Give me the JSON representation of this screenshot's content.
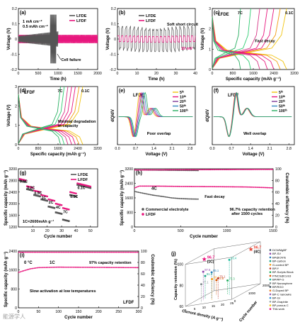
{
  "footer": {
    "watermark": "能源学人"
  },
  "chart_data": [
    {
      "id": "a",
      "type": "line",
      "panel_label": "(a)",
      "xlabel": "Time (h)",
      "ylabel": "Voltage (V)",
      "xlim": [
        0,
        2000
      ],
      "ylim": [
        -0.2,
        0.2
      ],
      "xticks": [
        0,
        500,
        1000,
        1500,
        2000
      ],
      "yticks": [
        -0.2,
        -0.1,
        0.0,
        0.1,
        0.2
      ],
      "texts": [
        "1 mA cm⁻²",
        "0.5 mAh cm⁻²"
      ],
      "annotation": "Cell failure",
      "series": [
        {
          "name": "LFDE",
          "color": "#555555",
          "envelope": [
            [
              0,
              0.02
            ],
            [
              200,
              0.03
            ],
            [
              500,
              0.035
            ],
            [
              700,
              0.045
            ],
            [
              780,
              0.06
            ],
            [
              820,
              -0.17
            ],
            [
              900,
              0.15
            ],
            [
              960,
              -0.18
            ],
            [
              1000,
              0.05
            ]
          ]
        },
        {
          "name": "LFDF",
          "color": "#e8177e",
          "envelope": [
            [
              0,
              0.025
            ],
            [
              1000,
              0.028
            ],
            [
              2000,
              0.03
            ]
          ]
        }
      ]
    },
    {
      "id": "b",
      "type": "line",
      "panel_label": "(b)",
      "xlabel": "Time (h)",
      "ylabel": "Voltage (V)",
      "xlim": [
        0,
        40
      ],
      "ylim": [
        -0.2,
        0.2
      ],
      "xticks": [
        0,
        10,
        20,
        30,
        40
      ],
      "yticks": [
        -0.2,
        -0.1,
        0.0,
        0.1,
        0.2
      ],
      "annotations": [
        "Soft short circuit",
        "19 mV"
      ],
      "series": [
        {
          "name": "LFDE",
          "color": "#555555",
          "amplitude": 0.07
        },
        {
          "name": "LFDF",
          "color": "#e8177e",
          "amplitude": 0.019
        }
      ]
    },
    {
      "id": "c",
      "type": "line",
      "panel_label": "(c)",
      "title": "LFDE",
      "xlabel": "Specific capacity (mAh g⁻¹)",
      "ylabel": "Voltage (V)",
      "xlim": [
        0,
        3200
      ],
      "ylim": [
        0,
        3
      ],
      "xticks": [
        0,
        800,
        1600,
        2400,
        3200
      ],
      "yticks": [
        0,
        1,
        2,
        3
      ],
      "rate_labels": [
        "7C",
        "0.1C"
      ],
      "annotation": "Fast decay",
      "series": [
        {
          "name": "0.1C",
          "color": "#f1c40f",
          "capacity": 2900
        },
        {
          "name": "0.2C",
          "color": "#f39c12",
          "capacity": 2650
        },
        {
          "name": "0.5C",
          "color": "#e8177e",
          "capacity": 2400
        },
        {
          "name": "1C",
          "color": "#e8177e",
          "capacity": 2150
        },
        {
          "name": "2C",
          "color": "#d63384",
          "capacity": 1850
        },
        {
          "name": "4C",
          "color": "#2ecc71",
          "capacity": 1500
        },
        {
          "name": "7C",
          "color": "#27ae60",
          "capacity": 1100
        }
      ]
    },
    {
      "id": "d",
      "type": "line",
      "panel_label": "(d)",
      "title": "LFDF",
      "xlabel": "Specific capacity (mAh g⁻¹)",
      "ylabel": "Voltage (V)",
      "xlim": [
        0,
        3200
      ],
      "ylim": [
        0,
        3
      ],
      "xticks": [
        0,
        800,
        1600,
        2400,
        3200
      ],
      "yticks": [
        0,
        1,
        2,
        3
      ],
      "rate_labels": [
        "7C",
        "0.1C"
      ],
      "annotation": "Minimal degradation in capacity",
      "series": [
        {
          "name": "0.1C",
          "color": "#f1c40f",
          "capacity": 2600
        },
        {
          "name": "0.2C",
          "color": "#f39c12",
          "capacity": 2450
        },
        {
          "name": "0.5C",
          "color": "#e8177e",
          "capacity": 2300
        },
        {
          "name": "1C",
          "color": "#e8177e",
          "capacity": 2150
        },
        {
          "name": "2C",
          "color": "#d63384",
          "capacity": 2000
        },
        {
          "name": "4C",
          "color": "#2ecc71",
          "capacity": 1850
        },
        {
          "name": "7C",
          "color": "#27ae60",
          "capacity": 1700
        }
      ]
    },
    {
      "id": "e",
      "type": "line",
      "panel_label": "(e)",
      "title": "LFDE",
      "xlabel": "Voltage (V)",
      "ylabel": "dQ/dV",
      "xlim": [
        0,
        3.0
      ],
      "xticks": [
        0.0,
        0.7,
        1.4,
        2.1,
        2.8
      ],
      "annotation": "Poor overlap",
      "series": [
        {
          "name": "5ᵗʰ",
          "color": "#f1c40f",
          "peak_shift": 0.0
        },
        {
          "name": "10ᵗʰ",
          "color": "#e8177e",
          "peak_shift": 0.05
        },
        {
          "name": "20ᵗʰ",
          "color": "#7d3c98",
          "peak_shift": 0.1
        },
        {
          "name": "50ᵗʰ",
          "color": "#2e86c1",
          "peak_shift": 0.16
        },
        {
          "name": "100ᵗʰ",
          "color": "#27ae60",
          "peak_shift": 0.22
        }
      ]
    },
    {
      "id": "f",
      "type": "line",
      "panel_label": "(f)",
      "title": "LFDF",
      "xlabel": "Voltage (V)",
      "ylabel": "dQ/dV",
      "xlim": [
        0,
        3.0
      ],
      "xticks": [
        0.0,
        0.7,
        1.4,
        2.1,
        2.8
      ],
      "annotation": "Well overlap",
      "series": [
        {
          "name": "5ᵗʰ",
          "color": "#f1c40f",
          "peak_shift": 0.0
        },
        {
          "name": "10ᵗʰ",
          "color": "#e8177e",
          "peak_shift": 0.01
        },
        {
          "name": "20ᵗʰ",
          "color": "#7d3c98",
          "peak_shift": 0.02
        },
        {
          "name": "50ᵗʰ",
          "color": "#2e86c1",
          "peak_shift": 0.03
        },
        {
          "name": "100ᵗʰ",
          "color": "#27ae60",
          "peak_shift": 0.04
        }
      ]
    },
    {
      "id": "g",
      "type": "scatter",
      "panel_label": "(g)",
      "xlabel": "Cycle number",
      "ylabel": "Specific capacity (mAh g⁻¹)",
      "xlim": [
        0,
        55
      ],
      "ylim": [
        1200,
        3200
      ],
      "xticks": [
        10,
        20,
        30,
        40,
        50
      ],
      "yticks": [
        1200,
        1600,
        2000,
        2400,
        2800,
        3200
      ],
      "note": "1C=2600mAh g⁻¹",
      "rate_steps": [
        {
          "label": "0.1C",
          "start": 1,
          "end": 5
        },
        {
          "label": "0.2C",
          "start": 6,
          "end": 10
        },
        {
          "label": "0.5C",
          "start": 11,
          "end": 15
        },
        {
          "label": "1C",
          "start": 16,
          "end": 20
        },
        {
          "label": "2C",
          "start": 21,
          "end": 25
        },
        {
          "label": "4C",
          "start": 26,
          "end": 30
        },
        {
          "label": "7C",
          "start": 31,
          "end": 35
        },
        {
          "label": "0.5C",
          "start": 36,
          "end": 40
        },
        {
          "label": "0.1C",
          "start": 41,
          "end": 50
        }
      ],
      "series": [
        {
          "name": "LFDE",
          "color": "#555555",
          "values": [
            2800,
            2500,
            2300,
            2150,
            1900,
            1700,
            1450,
            2300,
            2650
          ]
        },
        {
          "name": "LFDF",
          "color": "#e8177e",
          "values": [
            2850,
            2600,
            2450,
            2300,
            2150,
            2000,
            1850,
            2400,
            2700
          ]
        }
      ]
    },
    {
      "id": "h",
      "type": "line",
      "panel_label": "(h)",
      "xlabel": "Cycle number",
      "ylabel": "Specific capacity (mAh g⁻¹)",
      "y2label": "Coulombic efficiency (%)",
      "xlim": [
        0,
        1500
      ],
      "ylim": [
        0,
        3200
      ],
      "y2lim": [
        0,
        100
      ],
      "xticks": [
        0,
        500,
        1000,
        1500
      ],
      "yticks": [
        0,
        800,
        1600,
        2400,
        3200
      ],
      "y2ticks": [
        0,
        20,
        40,
        60,
        80,
        100
      ],
      "rate": "4C",
      "annotations": [
        "Fast decay",
        "96.7% capacity retention after 1500 cycles"
      ],
      "series": [
        {
          "name": "Commercial electrolyte",
          "color": "#555555",
          "points": [
            [
              5,
              1950
            ],
            [
              50,
              1900
            ],
            [
              100,
              1850
            ],
            [
              200,
              1750
            ],
            [
              300,
              1680
            ],
            [
              400,
              1600
            ],
            [
              500,
              1560
            ],
            [
              600,
              1540
            ],
            [
              700,
              1530
            ]
          ],
          "ce": [
            [
              5,
              98
            ],
            [
              700,
              97
            ]
          ]
        },
        {
          "name": "LFDF",
          "color": "#e8177e",
          "points": [
            [
              5,
              2150
            ],
            [
              50,
              2250
            ],
            [
              200,
              2250
            ],
            [
              500,
              2230
            ],
            [
              800,
              2220
            ],
            [
              1000,
              2210
            ],
            [
              1200,
              2200
            ],
            [
              1400,
              2170
            ],
            [
              1500,
              2150
            ]
          ],
          "ce": [
            [
              5,
              98
            ],
            [
              1500,
              99
            ]
          ]
        }
      ]
    },
    {
      "id": "i",
      "type": "line",
      "panel_label": "(i)",
      "xlabel": "Cycle number",
      "ylabel": "Specific capacity (mAh g⁻¹)",
      "y2label": "Coulombic efficiency (%)",
      "xlim": [
        0,
        300
      ],
      "ylim": [
        0,
        2400
      ],
      "y2lim": [
        0,
        100
      ],
      "xticks": [
        0,
        50,
        100,
        150,
        200,
        250,
        300
      ],
      "yticks": [
        0,
        800,
        1600,
        2400
      ],
      "y2ticks": [
        0,
        20,
        40,
        60,
        80,
        100
      ],
      "texts": [
        "0 °C",
        "1C",
        "LFDF"
      ],
      "annotations": [
        "97% capacity retention",
        "Slow activation at low temperatures"
      ],
      "series": [
        {
          "name": "LFDF",
          "color": "#e8177e",
          "points": [
            [
              1,
              1500
            ],
            [
              10,
              1550
            ],
            [
              30,
              1650
            ],
            [
              50,
              1700
            ],
            [
              100,
              1720
            ],
            [
              200,
              1710
            ],
            [
              300,
              1700
            ]
          ],
          "ce": [
            [
              1,
              98
            ],
            [
              300,
              99
            ]
          ]
        }
      ]
    },
    {
      "id": "j",
      "type": "scatter",
      "panel_label": "(j)",
      "xlabel": "Current density (A g⁻¹)",
      "ylabel": "Capacity retention (%)",
      "zlabel": "Cycle number",
      "zticks": [
        0,
        1000,
        2000
      ],
      "yticks": [
        60,
        80,
        100
      ],
      "xticks": [
        0,
        5,
        10,
        15,
        20,
        25
      ],
      "highlight_labels": [
        "96.7 (1C)",
        "96.7 (4C)"
      ],
      "legend": [
        "DCN/MgBF",
        "BP-SV",
        "BP@CNTs",
        "BP-carbon",
        "G-control BP",
        "BP/Y",
        "BP-Scripts Block",
        "P/NCS@CoS3",
        "BP/RP-G",
        "BP Nanosphere",
        "BP/RGO",
        "G-Doped BP",
        "BP-C nanowire",
        "BP-Gr",
        "BP-Graphite",
        "BP porous C",
        "This work"
      ],
      "points": [
        {
          "name": "This work (1C)",
          "color": "#e8177e",
          "retention": 96.7,
          "cycles": 1000
        },
        {
          "name": "This work (4C)",
          "color": "#e74c3c",
          "retention": 96.7,
          "cycles": 1500
        },
        {
          "name": "BP/Y",
          "color": "#8e44ad",
          "retention": 87.5
        },
        {
          "name": "BP-Scripts Block",
          "color": "#2980b9",
          "retention": 85.1
        },
        {
          "name": "BP/RP-G",
          "color": "#16a085",
          "retention": 81.3
        },
        {
          "name": "BP-carbon",
          "color": "#f39c12",
          "retention": 80.2
        },
        {
          "name": "BP-Gr",
          "color": "#27ae60",
          "retention": 73.3
        }
      ],
      "point_labels": [
        "87.5",
        "85.1",
        "81.3",
        "80.2",
        "73.3",
        "73.8",
        "79.1",
        "77.1",
        "93.4"
      ]
    }
  ]
}
